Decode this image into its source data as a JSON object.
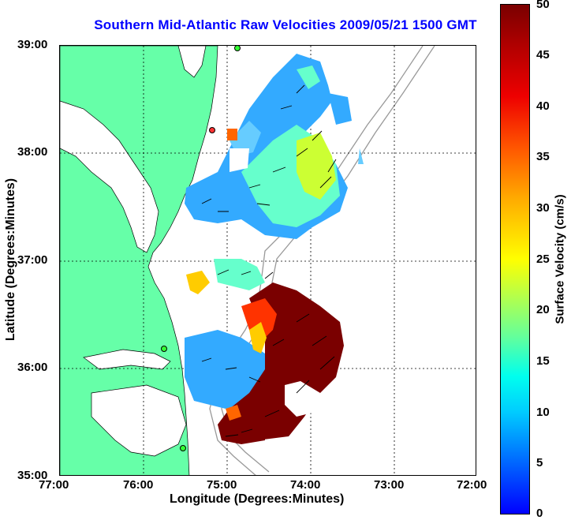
{
  "title": "Southern Mid-Atlantic Raw Velocities 2009/05/21 1500 GMT",
  "xlabel": "Longitude (Degrees:Minutes)",
  "ylabel": "Latitude (Degrees:Minutes)",
  "x_ticks": [
    "77:00",
    "76:00",
    "75:00",
    "74:00",
    "73:00",
    "72:00"
  ],
  "y_ticks": [
    "39:00",
    "38:00",
    "37:00",
    "36:00",
    "35:00"
  ],
  "colorbar": {
    "label": "Surface Velocity (cm/s)",
    "ticks": [
      "50",
      "45",
      "40",
      "35",
      "30",
      "25",
      "20",
      "15",
      "10",
      "5",
      "0"
    ],
    "range": [
      0,
      50
    ],
    "colors": [
      "#0000ff",
      "#00ccff",
      "#66ff99",
      "#ffff00",
      "#ff5500",
      "#7a0000"
    ]
  },
  "colors": {
    "land": "#66ffa8",
    "title": "#0000ff"
  }
}
